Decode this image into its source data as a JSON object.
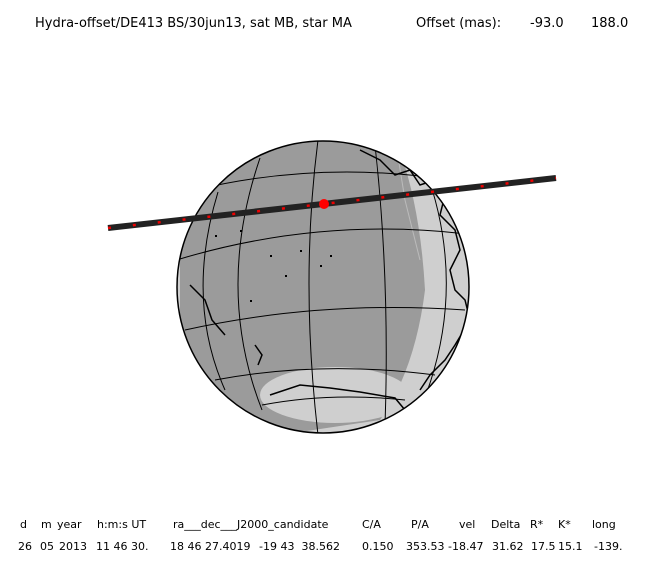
{
  "header": {
    "title": "Hydra-offset/DE413 BS/30jun13, sat MB, star MA",
    "offset_label": "Offset (mas):",
    "offset_values": [
      "-93.0",
      "188.0"
    ]
  },
  "table": {
    "columns": [
      "d",
      "m",
      "year",
      "h:m:s UT",
      "ra___dec___J2000_candidate",
      "C/A",
      "P/A",
      "vel",
      "Delta",
      "R*",
      "K*",
      "long"
    ],
    "row": [
      "26",
      "05",
      "2013",
      "11 46 30.",
      "18 46 27.4019",
      "-19 43  38.562",
      "0.150",
      "353.53",
      "-18.47",
      "31.62",
      "17.5",
      "15.1",
      "-139."
    ]
  }
}
